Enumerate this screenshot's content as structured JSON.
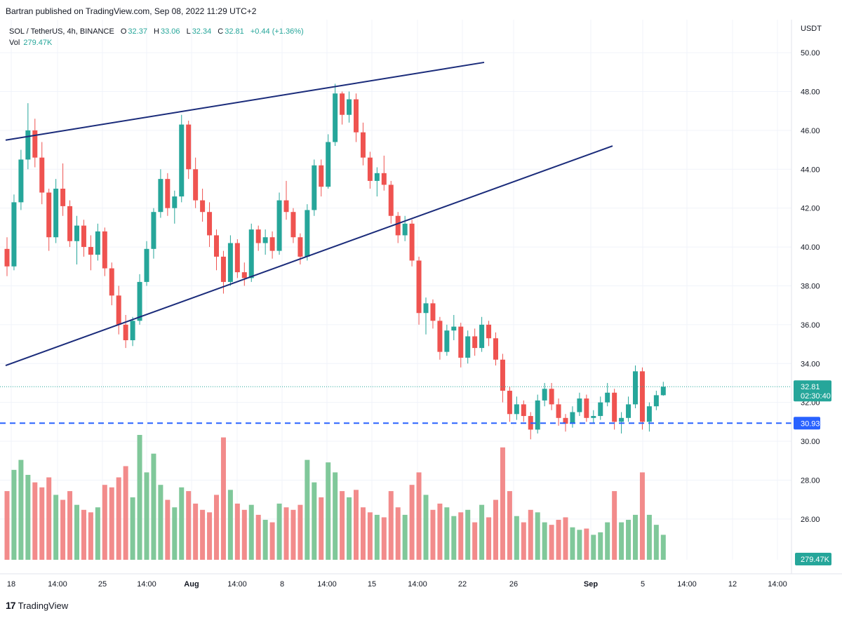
{
  "publish_line": "Bartran published on TradingView.com, Sep 08, 2022 11:29 UTC+2",
  "legend": {
    "symbol": "SOL / TetherUS, 4h, BINANCE",
    "open_label": "O",
    "open": "32.37",
    "high_label": "H",
    "high": "33.06",
    "low_label": "L",
    "low": "32.34",
    "close_label": "C",
    "close": "32.81",
    "change": "+0.44 (+1.36%)",
    "vol_label": "Vol",
    "vol": "279.47K"
  },
  "footer": {
    "logo": "17",
    "brand": "TradingView"
  },
  "colors": {
    "up": "#26a69a",
    "down": "#ef5350",
    "vol_up": "#80c89a",
    "vol_down": "#f28b8b",
    "trendline": "#1a2b7a",
    "support": "#2962ff",
    "last_price_badge": "#26a69a",
    "support_badge": "#2962ff"
  },
  "chart_data": {
    "type": "candlestick",
    "symbol": "SOL / TetherUS",
    "interval": "4h",
    "exchange": "BINANCE",
    "y_axis_unit": "USDT",
    "ylim": [
      23.9,
      51.7
    ],
    "y_ticks": [
      "50.00",
      "48.00",
      "46.00",
      "44.00",
      "42.00",
      "40.00",
      "38.00",
      "36.00",
      "34.00",
      "32.00",
      "30.00",
      "28.00",
      "26.00"
    ],
    "x_ticks": [
      "18",
      "14:00",
      "25",
      "14:00",
      "Aug",
      "14:00",
      "8",
      "14:00",
      "15",
      "14:00",
      "22",
      "26",
      "Sep",
      "5",
      "14:00",
      "12",
      "14:00"
    ],
    "grid": true,
    "last_price": 32.81,
    "last_price_label": "32.81",
    "countdown_label": "02:30:40",
    "support_level": 30.93,
    "support_label": "30.93",
    "volume_label": "279.47K",
    "trendlines": [
      {
        "name": "upper",
        "from": [
          "Jul 18",
          45.5
        ],
        "to": [
          "Aug 23",
          49.5
        ]
      },
      {
        "name": "lower",
        "from": [
          "Jul 18",
          33.9
        ],
        "to": [
          "Aug 30",
          45.2
        ]
      }
    ],
    "candles": [
      {
        "o": 39.9,
        "h": 40.5,
        "l": 38.5,
        "c": 39.0,
        "v": 0.55
      },
      {
        "o": 39.0,
        "h": 42.7,
        "l": 38.8,
        "c": 42.3,
        "v": 0.72
      },
      {
        "o": 42.3,
        "h": 45.0,
        "l": 41.9,
        "c": 44.5,
        "v": 0.8
      },
      {
        "o": 44.5,
        "h": 47.4,
        "l": 44.0,
        "c": 46.0,
        "v": 0.68
      },
      {
        "o": 46.0,
        "h": 46.6,
        "l": 44.1,
        "c": 44.6,
        "v": 0.62
      },
      {
        "o": 44.6,
        "h": 45.4,
        "l": 42.2,
        "c": 42.8,
        "v": 0.58
      },
      {
        "o": 42.8,
        "h": 43.0,
        "l": 39.8,
        "c": 40.5,
        "v": 0.66
      },
      {
        "o": 40.5,
        "h": 43.5,
        "l": 40.2,
        "c": 43.0,
        "v": 0.52
      },
      {
        "o": 43.0,
        "h": 44.3,
        "l": 41.6,
        "c": 42.1,
        "v": 0.48
      },
      {
        "o": 42.1,
        "h": 42.4,
        "l": 40.0,
        "c": 40.3,
        "v": 0.55
      },
      {
        "o": 40.3,
        "h": 41.6,
        "l": 39.1,
        "c": 41.1,
        "v": 0.44
      },
      {
        "o": 41.1,
        "h": 41.4,
        "l": 39.5,
        "c": 40.0,
        "v": 0.4
      },
      {
        "o": 40.0,
        "h": 40.6,
        "l": 38.8,
        "c": 39.6,
        "v": 0.38
      },
      {
        "o": 39.6,
        "h": 41.2,
        "l": 39.3,
        "c": 40.8,
        "v": 0.42
      },
      {
        "o": 40.8,
        "h": 41.0,
        "l": 38.5,
        "c": 38.9,
        "v": 0.6
      },
      {
        "o": 38.9,
        "h": 39.2,
        "l": 37.0,
        "c": 37.5,
        "v": 0.58
      },
      {
        "o": 37.5,
        "h": 38.0,
        "l": 35.5,
        "c": 36.0,
        "v": 0.66
      },
      {
        "o": 36.0,
        "h": 36.5,
        "l": 34.8,
        "c": 35.2,
        "v": 0.75
      },
      {
        "o": 35.2,
        "h": 36.4,
        "l": 34.9,
        "c": 36.2,
        "v": 0.5
      },
      {
        "o": 36.2,
        "h": 38.6,
        "l": 36.0,
        "c": 38.2,
        "v": 1.0
      },
      {
        "o": 38.2,
        "h": 40.3,
        "l": 38.0,
        "c": 39.9,
        "v": 0.7
      },
      {
        "o": 39.9,
        "h": 42.0,
        "l": 39.4,
        "c": 41.8,
        "v": 0.85
      },
      {
        "o": 41.8,
        "h": 44.0,
        "l": 41.5,
        "c": 43.5,
        "v": 0.6
      },
      {
        "o": 43.5,
        "h": 43.8,
        "l": 41.6,
        "c": 42.0,
        "v": 0.48
      },
      {
        "o": 42.0,
        "h": 42.9,
        "l": 41.2,
        "c": 42.6,
        "v": 0.42
      },
      {
        "o": 42.6,
        "h": 46.8,
        "l": 42.3,
        "c": 46.3,
        "v": 0.58
      },
      {
        "o": 46.3,
        "h": 46.5,
        "l": 43.5,
        "c": 44.0,
        "v": 0.55
      },
      {
        "o": 44.0,
        "h": 44.6,
        "l": 42.0,
        "c": 42.4,
        "v": 0.45
      },
      {
        "o": 42.4,
        "h": 43.0,
        "l": 41.3,
        "c": 41.8,
        "v": 0.4
      },
      {
        "o": 41.8,
        "h": 42.3,
        "l": 40.0,
        "c": 40.6,
        "v": 0.38
      },
      {
        "o": 40.6,
        "h": 40.9,
        "l": 38.8,
        "c": 39.5,
        "v": 0.52
      },
      {
        "o": 39.5,
        "h": 39.8,
        "l": 37.6,
        "c": 38.2,
        "v": 0.98
      },
      {
        "o": 38.2,
        "h": 40.6,
        "l": 38.0,
        "c": 40.2,
        "v": 0.56
      },
      {
        "o": 40.2,
        "h": 40.4,
        "l": 38.4,
        "c": 38.7,
        "v": 0.45
      },
      {
        "o": 38.7,
        "h": 39.2,
        "l": 38.0,
        "c": 38.4,
        "v": 0.4
      },
      {
        "o": 38.4,
        "h": 41.2,
        "l": 38.2,
        "c": 40.9,
        "v": 0.44
      },
      {
        "o": 40.9,
        "h": 41.1,
        "l": 39.8,
        "c": 40.2,
        "v": 0.36
      },
      {
        "o": 40.2,
        "h": 40.9,
        "l": 39.6,
        "c": 40.5,
        "v": 0.32
      },
      {
        "o": 40.5,
        "h": 40.8,
        "l": 39.4,
        "c": 39.8,
        "v": 0.3
      },
      {
        "o": 39.8,
        "h": 42.8,
        "l": 39.6,
        "c": 42.4,
        "v": 0.45
      },
      {
        "o": 42.4,
        "h": 43.4,
        "l": 41.4,
        "c": 41.8,
        "v": 0.42
      },
      {
        "o": 41.8,
        "h": 42.0,
        "l": 40.2,
        "c": 40.5,
        "v": 0.4
      },
      {
        "o": 40.5,
        "h": 40.7,
        "l": 39.1,
        "c": 39.5,
        "v": 0.44
      },
      {
        "o": 39.5,
        "h": 42.2,
        "l": 39.3,
        "c": 41.9,
        "v": 0.8
      },
      {
        "o": 41.9,
        "h": 44.5,
        "l": 41.6,
        "c": 44.2,
        "v": 0.62
      },
      {
        "o": 44.2,
        "h": 44.5,
        "l": 42.6,
        "c": 43.1,
        "v": 0.5
      },
      {
        "o": 43.1,
        "h": 45.8,
        "l": 43.0,
        "c": 45.4,
        "v": 0.78
      },
      {
        "o": 45.4,
        "h": 48.4,
        "l": 45.2,
        "c": 47.9,
        "v": 0.7
      },
      {
        "o": 47.9,
        "h": 48.0,
        "l": 46.3,
        "c": 46.8,
        "v": 0.55
      },
      {
        "o": 46.8,
        "h": 48.0,
        "l": 46.4,
        "c": 47.6,
        "v": 0.5
      },
      {
        "o": 47.6,
        "h": 47.9,
        "l": 45.4,
        "c": 45.9,
        "v": 0.56
      },
      {
        "o": 45.9,
        "h": 46.4,
        "l": 44.2,
        "c": 44.6,
        "v": 0.42
      },
      {
        "o": 44.6,
        "h": 44.9,
        "l": 43.0,
        "c": 43.4,
        "v": 0.38
      },
      {
        "o": 43.4,
        "h": 44.1,
        "l": 42.6,
        "c": 43.8,
        "v": 0.36
      },
      {
        "o": 43.8,
        "h": 44.7,
        "l": 42.9,
        "c": 43.2,
        "v": 0.34
      },
      {
        "o": 43.2,
        "h": 43.4,
        "l": 41.2,
        "c": 41.6,
        "v": 0.55
      },
      {
        "o": 41.6,
        "h": 41.8,
        "l": 40.2,
        "c": 40.6,
        "v": 0.42
      },
      {
        "o": 40.6,
        "h": 41.6,
        "l": 40.3,
        "c": 41.2,
        "v": 0.36
      },
      {
        "o": 41.2,
        "h": 41.4,
        "l": 39.0,
        "c": 39.3,
        "v": 0.6
      },
      {
        "o": 39.3,
        "h": 39.5,
        "l": 36.0,
        "c": 36.6,
        "v": 0.7
      },
      {
        "o": 36.6,
        "h": 37.4,
        "l": 35.5,
        "c": 37.1,
        "v": 0.52
      },
      {
        "o": 37.1,
        "h": 37.3,
        "l": 35.8,
        "c": 36.2,
        "v": 0.4
      },
      {
        "o": 36.2,
        "h": 36.4,
        "l": 34.2,
        "c": 34.6,
        "v": 0.45
      },
      {
        "o": 34.6,
        "h": 36.0,
        "l": 34.4,
        "c": 35.7,
        "v": 0.42
      },
      {
        "o": 35.7,
        "h": 36.5,
        "l": 35.2,
        "c": 35.9,
        "v": 0.35
      },
      {
        "o": 35.9,
        "h": 36.1,
        "l": 33.8,
        "c": 34.3,
        "v": 0.38
      },
      {
        "o": 34.3,
        "h": 35.7,
        "l": 34.0,
        "c": 35.4,
        "v": 0.4
      },
      {
        "o": 35.4,
        "h": 35.8,
        "l": 34.4,
        "c": 34.8,
        "v": 0.3
      },
      {
        "o": 34.8,
        "h": 36.4,
        "l": 34.6,
        "c": 36.0,
        "v": 0.44
      },
      {
        "o": 36.0,
        "h": 36.2,
        "l": 34.9,
        "c": 35.3,
        "v": 0.34
      },
      {
        "o": 35.3,
        "h": 35.6,
        "l": 33.9,
        "c": 34.2,
        "v": 0.48
      },
      {
        "o": 34.2,
        "h": 34.5,
        "l": 32.0,
        "c": 32.6,
        "v": 0.9
      },
      {
        "o": 32.6,
        "h": 32.8,
        "l": 31.0,
        "c": 31.4,
        "v": 0.55
      },
      {
        "o": 31.4,
        "h": 32.3,
        "l": 31.1,
        "c": 31.9,
        "v": 0.35
      },
      {
        "o": 31.9,
        "h": 32.1,
        "l": 31.0,
        "c": 31.3,
        "v": 0.3
      },
      {
        "o": 31.3,
        "h": 31.5,
        "l": 30.1,
        "c": 30.6,
        "v": 0.4
      },
      {
        "o": 30.6,
        "h": 32.4,
        "l": 30.4,
        "c": 32.1,
        "v": 0.38
      },
      {
        "o": 32.1,
        "h": 33.0,
        "l": 31.8,
        "c": 32.7,
        "v": 0.3
      },
      {
        "o": 32.7,
        "h": 33.0,
        "l": 31.6,
        "c": 31.9,
        "v": 0.28
      },
      {
        "o": 31.9,
        "h": 32.2,
        "l": 30.8,
        "c": 31.2,
        "v": 0.32
      },
      {
        "o": 31.2,
        "h": 31.4,
        "l": 30.5,
        "c": 30.9,
        "v": 0.34
      },
      {
        "o": 30.9,
        "h": 31.8,
        "l": 30.7,
        "c": 31.5,
        "v": 0.26
      },
      {
        "o": 31.5,
        "h": 32.5,
        "l": 31.3,
        "c": 32.2,
        "v": 0.24
      },
      {
        "o": 32.2,
        "h": 32.4,
        "l": 31.0,
        "c": 31.2,
        "v": 0.25
      },
      {
        "o": 31.2,
        "h": 31.6,
        "l": 30.9,
        "c": 31.3,
        "v": 0.2
      },
      {
        "o": 31.3,
        "h": 32.3,
        "l": 31.1,
        "c": 32.0,
        "v": 0.22
      },
      {
        "o": 32.0,
        "h": 33.0,
        "l": 31.8,
        "c": 32.5,
        "v": 0.3
      },
      {
        "o": 32.5,
        "h": 32.7,
        "l": 30.6,
        "c": 31.0,
        "v": 0.55
      },
      {
        "o": 31.0,
        "h": 31.5,
        "l": 30.4,
        "c": 31.2,
        "v": 0.3
      },
      {
        "o": 31.2,
        "h": 32.3,
        "l": 31.0,
        "c": 31.9,
        "v": 0.32
      },
      {
        "o": 31.9,
        "h": 33.9,
        "l": 31.7,
        "c": 33.6,
        "v": 0.36
      },
      {
        "o": 33.6,
        "h": 33.8,
        "l": 30.6,
        "c": 31.0,
        "v": 0.7
      },
      {
        "o": 31.0,
        "h": 32.0,
        "l": 30.5,
        "c": 31.8,
        "v": 0.36
      },
      {
        "o": 31.8,
        "h": 32.6,
        "l": 31.6,
        "c": 32.37,
        "v": 0.28
      },
      {
        "o": 32.37,
        "h": 33.06,
        "l": 32.34,
        "c": 32.81,
        "v": 0.2
      }
    ]
  }
}
